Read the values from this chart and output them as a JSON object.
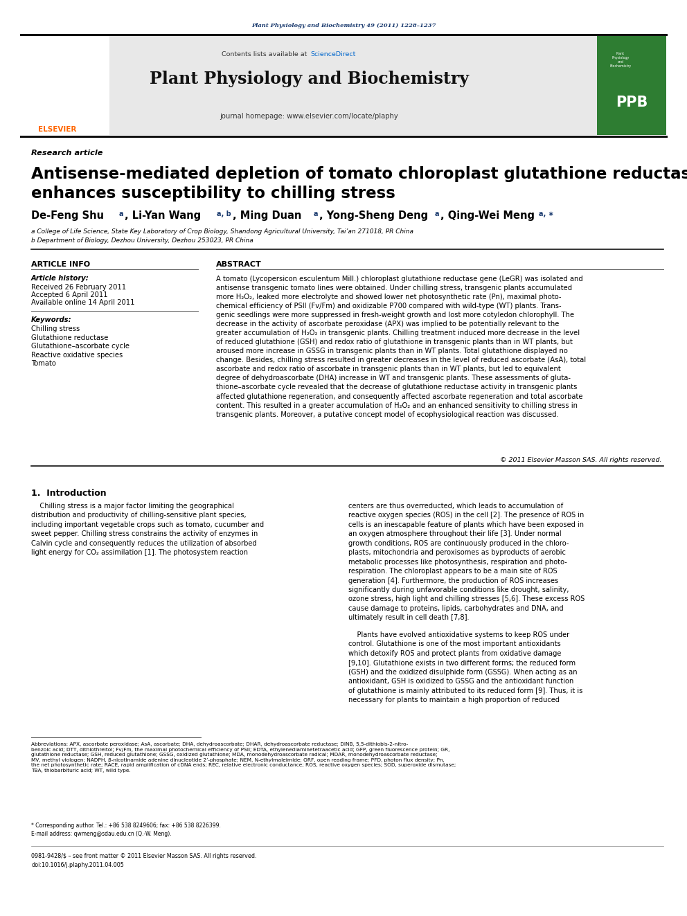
{
  "page_width": 9.92,
  "page_height": 13.23,
  "background_color": "#ffffff",
  "header_journal_text": "Plant Physiology and Biochemistry 49 (2011) 1228–1237",
  "header_journal_color": "#1a3a6e",
  "journal_name": "Plant Physiology and Biochemistry",
  "journal_url": "journal homepage: www.elsevier.com/locate/plaphy",
  "contents_text": "Contents lists available at ScienceDirect",
  "sciencedirect_color": "#0066cc",
  "article_type": "Research article",
  "title_line1": "Antisense-mediated depletion of tomato chloroplast glutathione reductase",
  "title_line2": "enhances susceptibility to chilling stress",
  "affiliation_a": "a College of Life Science, State Key Laboratory of Crop Biology, Shandong Agricultural University, Tai’an 271018, PR China",
  "affiliation_b": "b Department of Biology, Dezhou University, Dezhou 253023, PR China",
  "article_info_header": "ARTICLE INFO",
  "abstract_header": "ABSTRACT",
  "article_history_label": "Article history:",
  "received": "Received 26 February 2011",
  "accepted": "Accepted 6 April 2011",
  "available": "Available online 14 April 2011",
  "keywords_label": "Keywords:",
  "keywords": [
    "Chilling stress",
    "Glutathione reductase",
    "Glutathione–ascorbate cycle",
    "Reactive oxidative species",
    "Tomato"
  ],
  "abstract_text": "A tomato (Lycopersicon esculentum Mill.) chloroplast glutathione reductase gene (LeGR) was isolated and\nantisense transgenic tomato lines were obtained. Under chilling stress, transgenic plants accumulated\nmore H₂O₂, leaked more electrolyte and showed lower net photosynthetic rate (Pn), maximal photo-\nchemical efficiency of PSII (Fv/Fm) and oxidizable P700 compared with wild-type (WT) plants. Trans-\ngenic seedlings were more suppressed in fresh-weight growth and lost more cotyledon chlorophyll. The\ndecrease in the activity of ascorbate peroxidase (APX) was implied to be potentially relevant to the\ngreater accumulation of H₂O₂ in transgenic plants. Chilling treatment induced more decrease in the level\nof reduced glutathione (GSH) and redox ratio of glutathione in transgenic plants than in WT plants, but\naroused more increase in GSSG in transgenic plants than in WT plants. Total glutathione displayed no\nchange. Besides, chilling stress resulted in greater decreases in the level of reduced ascorbate (AsA), total\nascorbate and redox ratio of ascorbate in transgenic plants than in WT plants, but led to equivalent\ndegree of dehydroascorbate (DHA) increase in WT and transgenic plants. These assessments of gluta-\nthione–ascorbate cycle revealed that the decrease of glutathione reductase activity in transgenic plants\naffected glutathione regeneration, and consequently affected ascorbate regeneration and total ascorbate\ncontent. This resulted in a greater accumulation of H₂O₂ and an enhanced sensitivity to chilling stress in\ntransgenic plants. Moreover, a putative concept model of ecophysiological reaction was discussed.",
  "copyright_text": "© 2011 Elsevier Masson SAS. All rights reserved.",
  "section1_header": "1.  Introduction",
  "intro_col1": "    Chilling stress is a major factor limiting the geographical\ndistribution and productivity of chilling-sensitive plant species,\nincluding important vegetable crops such as tomato, cucumber and\nsweet pepper. Chilling stress constrains the activity of enzymes in\nCalvin cycle and consequently reduces the utilization of absorbed\nlight energy for CO₂ assimilation [1]. The photosystem reaction",
  "intro_col2": "centers are thus overreducted, which leads to accumulation of\nreactive oxygen species (ROS) in the cell [2]. The presence of ROS in\ncells is an inescapable feature of plants which have been exposed in\nan oxygen atmosphere throughout their life [3]. Under normal\ngrowth conditions, ROS are continuously produced in the chloro-\nplasts, mitochondria and peroxisomes as byproducts of aerobic\nmetabolic processes like photosynthesis, respiration and photo-\nrespiration. The chloroplast appears to be a main site of ROS\ngeneration [4]. Furthermore, the production of ROS increases\nsignificantly during unfavorable conditions like drought, salinity,\nozone stress, high light and chilling stresses [5,6]. These excess ROS\ncause damage to proteins, lipids, carbohydrates and DNA, and\nultimately result in cell death [7,8].",
  "para2_col2": "    Plants have evolved antioxidative systems to keep ROS under\ncontrol. Glutathione is one of the most important antioxidants\nwhich detoxify ROS and protect plants from oxidative damage\n[9,10]. Glutathione exists in two different forms; the reduced form\n(GSH) and the oxidized disulphide form (GSSG). When acting as an\nantioxidant, GSH is oxidized to GSSG and the antioxidant function\nof glutathione is mainly attributed to its reduced form [9]. Thus, it is\nnecessary for plants to maintain a high proportion of reduced",
  "footnote_abbrev": "Abbreviations: APX, ascorbate peroxidase; AsA, ascorbate; DHA, dehydroascorbate; DHAR, dehydroascorbate reductase; DINB, 5,5-dithiobis-2-nitro-\nbenzoic acid; DTT, dithiothreitol; Fv/Fm, the maximal photochemical efficiency of PSII; EDTA, ethylenediaminetetraacetic acid; GFP, green fluorescence protein; GR,\nglutathione reductase; GSH, reduced glutathione; GSSG, oxidized glutathione; MDA, monodehydroascorbate radical; MDAR, monodehydroascorbate reductase;\nMV, methyl viologen; NADPH, β-nicotinamide adenine dinucleotide 2’-phosphate; NEM, N-ethylmaleimide; ORF, open reading frame; PFD, photon flux density; Pn,\nthe net photosynthetic rate; RACE, rapid amplification of cDNA ends; REC, relative electronic conductance; ROS, reactive oxygen species; SOD, superoxide dismutase;\nTBA, thiobarbituric acid; WT, wild type.",
  "footnote_corresponding": "* Corresponding author. Tel.: +86 538 8249606; fax: +86 538 8226399.",
  "footnote_email": "E-mail address: qwmeng@sdau.edu.cn (Q.-W. Meng).",
  "issn_text": "0981-9428/$ – see front matter © 2011 Elsevier Masson SAS. All rights reserved.",
  "doi_text": "doi:10.1016/j.plaphy.2011.04.005",
  "grey_bg": "#e8e8e8",
  "ppb_green": "#2e7d32",
  "elsevier_orange": "#ff6600",
  "text_color": "#000000",
  "blue_link": "#0066cc",
  "dark_blue": "#1a3a6e"
}
